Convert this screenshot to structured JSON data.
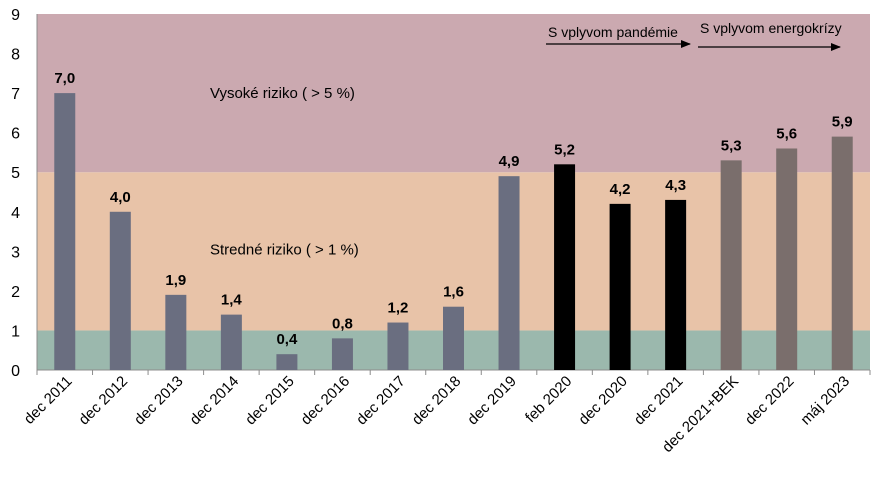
{
  "chart_data": {
    "type": "bar",
    "title": "",
    "xlabel": "",
    "ylabel": "",
    "ylim": [
      0,
      9
    ],
    "yticks": [
      0,
      1,
      2,
      3,
      4,
      5,
      6,
      7,
      8,
      9
    ],
    "grid": false,
    "categories": [
      "dec 2011",
      "dec 2012",
      "dec 2013",
      "dec 2014",
      "dec 2015",
      "dec 2016",
      "dec 2017",
      "dec 2018",
      "dec 2019",
      "feb 2020",
      "dec 2020",
      "dec 2021",
      "dec 2021+BEK",
      "dec 2022",
      "máj 2023"
    ],
    "values": [
      7.0,
      4.0,
      1.9,
      1.4,
      0.4,
      0.8,
      1.2,
      1.6,
      4.9,
      5.2,
      4.2,
      4.3,
      5.3,
      5.6,
      5.9
    ],
    "value_labels": [
      "7,0",
      "4,0",
      "1,9",
      "1,4",
      "0,4",
      "0,8",
      "1,2",
      "1,6",
      "4,9",
      "5,2",
      "4,2",
      "4,3",
      "5,3",
      "5,6",
      "5,9"
    ],
    "bar_groups": [
      "pre",
      "pre",
      "pre",
      "pre",
      "pre",
      "pre",
      "pre",
      "pre",
      "pre",
      "pandemic",
      "pandemic",
      "pandemic",
      "energy",
      "energy",
      "energy"
    ],
    "colors": {
      "pre": "#6a6e80",
      "pandemic": "#000000",
      "energy": "#7a6e6c"
    },
    "zones": [
      {
        "name": "low",
        "from": 0,
        "to": 1,
        "color": "#9bb8ad",
        "label": ""
      },
      {
        "name": "medium",
        "from": 1,
        "to": 5,
        "color": "#e8c3a8",
        "label": "Stredné riziko ( > 1 %)"
      },
      {
        "name": "high",
        "from": 5,
        "to": 9,
        "color": "#cba9b0",
        "label": "Vysoké riziko ( > 5 %)"
      }
    ],
    "annotations": [
      {
        "text": "S vplyvom pandémie",
        "from_category": 9,
        "to_category": 12
      },
      {
        "text": "S vplyvom energokrízy",
        "from_category": 12,
        "to_category": 14
      }
    ]
  }
}
